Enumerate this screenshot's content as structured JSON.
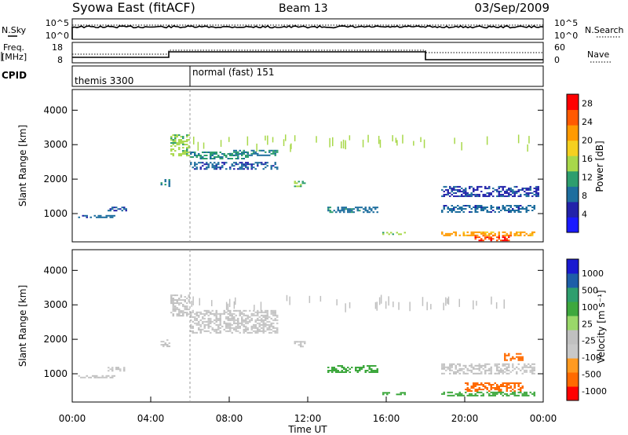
{
  "header": {
    "title": "Syowa East (fitACF)",
    "beam": "Beam 13",
    "date": "03/Sep/2009"
  },
  "top_panels": {
    "nsky_label": "N.Sky",
    "nsky_ticks": [
      "10^5",
      "10^0"
    ],
    "nsearch_label": "N.Search",
    "nsearch_ticks": [
      "10^5",
      "10^0"
    ],
    "freq_label_line1": "Freq.",
    "freq_label_line2": "[MHz]",
    "freq_ticks": [
      "18",
      "8"
    ],
    "nave_label": "Nave",
    "nave_ticks": [
      "60",
      "0"
    ],
    "cpid_label": "CPID",
    "cpid_modes": [
      {
        "name": "themis 3300",
        "start_hour": 0
      },
      {
        "name": "normal (fast) 151",
        "start_hour": 6
      }
    ]
  },
  "colors": {
    "power_scale": [
      "#1a1aff",
      "#2222aa",
      "#1e6e9e",
      "#2e9e6e",
      "#a8d84a",
      "#f5d020",
      "#ff9a00",
      "#ff5a00",
      "#ff0000"
    ],
    "velocity_scale": [
      "#ff0000",
      "#ff6a00",
      "#ff9a20",
      "#c8c8c8",
      "#c0c0c0",
      "#9ad86a",
      "#3ea83e",
      "#2e9e6e",
      "#1e5ea8",
      "#1a1ad0"
    ]
  },
  "chart_data": [
    {
      "type": "heatmap",
      "name": "power-panel",
      "ylabel": "Slant Range [km]",
      "xlim": [
        0,
        24
      ],
      "ylim": [
        180,
        4600
      ],
      "yticks": [
        1000,
        2000,
        3000,
        4000
      ],
      "colorbar": {
        "label": "Power [dB]",
        "ticks": [
          4,
          8,
          12,
          16,
          20,
          24,
          28
        ],
        "range": [
          0,
          30
        ]
      },
      "regions": [
        {
          "t": [
            0.3,
            2.2
          ],
          "r": [
            880,
            960
          ],
          "v": 7
        },
        {
          "t": [
            1.8,
            2.8
          ],
          "r": [
            1080,
            1200
          ],
          "v": 6
        },
        {
          "t": [
            4.5,
            5.0
          ],
          "r": [
            1800,
            2000
          ],
          "v": 9
        },
        {
          "t": [
            5.0,
            6.0
          ],
          "r": [
            2700,
            3300
          ],
          "v": 14
        },
        {
          "t": [
            6.0,
            9.0
          ],
          "r": [
            2600,
            2800
          ],
          "v": 10
        },
        {
          "t": [
            6.0,
            10.5
          ],
          "r": [
            2300,
            2500
          ],
          "v": 6
        },
        {
          "t": [
            8.0,
            10.5
          ],
          "r": [
            2700,
            2850
          ],
          "v": 9
        },
        {
          "t": [
            11.2,
            11.8
          ],
          "r": [
            1800,
            1950
          ],
          "v": 14
        },
        {
          "t": [
            13.0,
            15.6
          ],
          "r": [
            1050,
            1200
          ],
          "v": 8
        },
        {
          "t": [
            15.8,
            17.0
          ],
          "r": [
            380,
            470
          ],
          "v": 14
        },
        {
          "t": [
            18.8,
            23.6
          ],
          "r": [
            1050,
            1250
          ],
          "v": 7
        },
        {
          "t": [
            18.8,
            23.8
          ],
          "r": [
            1500,
            1800
          ],
          "v": 5
        },
        {
          "t": [
            18.8,
            23.6
          ],
          "r": [
            350,
            480
          ],
          "v": 22
        },
        {
          "t": [
            20.5,
            22.5
          ],
          "r": [
            230,
            380
          ],
          "v": 28
        }
      ]
    },
    {
      "type": "heatmap",
      "name": "velocity-panel",
      "ylabel": "Slant Range [km]",
      "xlabel": "Time UT",
      "xlim": [
        0,
        24
      ],
      "xticks": [
        "00:00",
        "04:00",
        "08:00",
        "12:00",
        "16:00",
        "20:00",
        "00:00"
      ],
      "ylim": [
        180,
        4600
      ],
      "yticks": [
        1000,
        2000,
        3000,
        4000
      ],
      "colorbar": {
        "label": "Velocity [m s⁻¹]",
        "ticks": [
          "1000",
          "500",
          "100",
          "25",
          "-25",
          "-100",
          "-500",
          "-1000"
        ]
      },
      "regions": [
        {
          "t": [
            0.3,
            2.2
          ],
          "r": [
            880,
            960
          ],
          "v": 0
        },
        {
          "t": [
            1.8,
            2.8
          ],
          "r": [
            1080,
            1200
          ],
          "v": 0
        },
        {
          "t": [
            4.5,
            5.0
          ],
          "r": [
            1800,
            2000
          ],
          "v": 0
        },
        {
          "t": [
            5.0,
            6.0
          ],
          "r": [
            2700,
            3300
          ],
          "v": 0
        },
        {
          "t": [
            6.0,
            10.5
          ],
          "r": [
            2200,
            2850
          ],
          "v": 0
        },
        {
          "t": [
            11.2,
            11.8
          ],
          "r": [
            1800,
            1950
          ],
          "v": 0
        },
        {
          "t": [
            13.0,
            15.6
          ],
          "r": [
            1050,
            1250
          ],
          "v": 200
        },
        {
          "t": [
            15.8,
            17.0
          ],
          "r": [
            380,
            470
          ],
          "v": 150
        },
        {
          "t": [
            18.8,
            23.6
          ],
          "r": [
            1000,
            1300
          ],
          "v": 0
        },
        {
          "t": [
            20.0,
            23.0
          ],
          "r": [
            500,
            750
          ],
          "v": -300
        },
        {
          "t": [
            18.8,
            23.6
          ],
          "r": [
            350,
            480
          ],
          "v": 200
        },
        {
          "t": [
            22.0,
            23.0
          ],
          "r": [
            1400,
            1600
          ],
          "v": -300
        }
      ]
    }
  ]
}
